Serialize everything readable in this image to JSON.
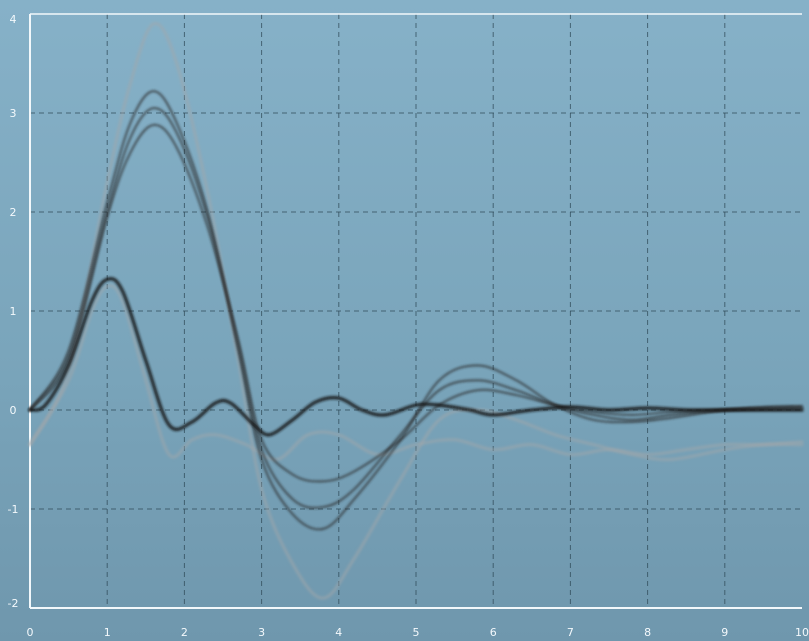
{
  "chart_data": {
    "type": "line",
    "title": "",
    "xlabel": "",
    "ylabel": "",
    "xlim": [
      0,
      10
    ],
    "ylim": [
      -2,
      4
    ],
    "grid": true,
    "x_ticks": [
      "0",
      "1",
      "2",
      "3",
      "4",
      "5",
      "6",
      "7",
      "8",
      "9",
      "10"
    ],
    "y_ticks": [
      "4",
      "3",
      "2",
      "1",
      "0",
      "-1",
      "-2"
    ],
    "series": [
      {
        "emphasis": "bold",
        "color": "#151515",
        "points": [
          [
            0,
            0
          ],
          [
            0.2,
            0.05
          ],
          [
            0.5,
            0.45
          ],
          [
            0.8,
            1.1
          ],
          [
            1.0,
            1.32
          ],
          [
            1.2,
            1.2
          ],
          [
            1.5,
            0.5
          ],
          [
            1.8,
            -0.15
          ],
          [
            2.1,
            -0.12
          ],
          [
            2.4,
            0.07
          ],
          [
            2.6,
            0.07
          ],
          [
            2.9,
            -0.15
          ],
          [
            3.1,
            -0.25
          ],
          [
            3.4,
            -0.1
          ],
          [
            3.7,
            0.08
          ],
          [
            4.0,
            0.12
          ],
          [
            4.3,
            0.0
          ],
          [
            4.6,
            -0.05
          ],
          [
            5.0,
            0.05
          ],
          [
            5.3,
            0.05
          ],
          [
            5.7,
            0.0
          ],
          [
            6.0,
            -0.05
          ],
          [
            6.5,
            0.0
          ],
          [
            7.0,
            0.03
          ],
          [
            7.5,
            0.0
          ],
          [
            8.0,
            0.02
          ],
          [
            8.5,
            0.0
          ],
          [
            9.0,
            0.0
          ],
          [
            9.5,
            0.0
          ],
          [
            10,
            0.0
          ]
        ]
      },
      {
        "emphasis": "thin",
        "color": "#2a2a2a",
        "points": [
          [
            0,
            0
          ],
          [
            0.5,
            0.6
          ],
          [
            1.0,
            2.1
          ],
          [
            1.3,
            2.9
          ],
          [
            1.6,
            3.22
          ],
          [
            1.9,
            2.9
          ],
          [
            2.3,
            2.0
          ],
          [
            2.7,
            0.6
          ],
          [
            3.0,
            -0.5
          ],
          [
            3.4,
            -1.05
          ],
          [
            3.8,
            -1.2
          ],
          [
            4.2,
            -0.9
          ],
          [
            4.8,
            -0.3
          ],
          [
            5.3,
            0.3
          ],
          [
            5.8,
            0.45
          ],
          [
            6.3,
            0.3
          ],
          [
            6.8,
            0.05
          ],
          [
            7.3,
            -0.1
          ],
          [
            7.8,
            -0.12
          ],
          [
            8.3,
            -0.08
          ],
          [
            9.0,
            0.0
          ],
          [
            9.5,
            0.03
          ],
          [
            10,
            0.04
          ]
        ]
      },
      {
        "emphasis": "thin",
        "color": "#2a2a2a",
        "points": [
          [
            0,
            0
          ],
          [
            0.5,
            0.55
          ],
          [
            1.0,
            2.0
          ],
          [
            1.3,
            2.75
          ],
          [
            1.6,
            3.05
          ],
          [
            1.9,
            2.8
          ],
          [
            2.3,
            1.95
          ],
          [
            2.7,
            0.65
          ],
          [
            3.0,
            -0.4
          ],
          [
            3.4,
            -0.9
          ],
          [
            3.8,
            -0.98
          ],
          [
            4.2,
            -0.8
          ],
          [
            4.8,
            -0.25
          ],
          [
            5.3,
            0.2
          ],
          [
            5.8,
            0.3
          ],
          [
            6.3,
            0.2
          ],
          [
            6.8,
            0.05
          ],
          [
            7.3,
            -0.05
          ],
          [
            7.8,
            -0.1
          ],
          [
            8.3,
            -0.05
          ],
          [
            9.0,
            0.0
          ],
          [
            9.5,
            0.02
          ],
          [
            10,
            0.03
          ]
        ]
      },
      {
        "emphasis": "thin",
        "color": "#2a2a2a",
        "points": [
          [
            0,
            0
          ],
          [
            0.5,
            0.5
          ],
          [
            1.0,
            1.95
          ],
          [
            1.3,
            2.6
          ],
          [
            1.6,
            2.88
          ],
          [
            1.9,
            2.65
          ],
          [
            2.3,
            1.85
          ],
          [
            2.7,
            0.7
          ],
          [
            3.0,
            -0.3
          ],
          [
            3.4,
            -0.65
          ],
          [
            3.8,
            -0.72
          ],
          [
            4.2,
            -0.62
          ],
          [
            4.8,
            -0.3
          ],
          [
            5.3,
            0.05
          ],
          [
            5.8,
            0.2
          ],
          [
            6.3,
            0.15
          ],
          [
            6.8,
            0.05
          ],
          [
            7.3,
            -0.02
          ],
          [
            7.8,
            -0.05
          ],
          [
            8.3,
            -0.02
          ],
          [
            9.0,
            0.0
          ],
          [
            10,
            0.02
          ]
        ]
      },
      {
        "emphasis": "faint",
        "color": "#a3a7aa",
        "points": [
          [
            0,
            -0.35
          ],
          [
            0.5,
            0.4
          ],
          [
            1.0,
            2.3
          ],
          [
            1.3,
            3.3
          ],
          [
            1.6,
            3.9
          ],
          [
            1.9,
            3.5
          ],
          [
            2.3,
            2.2
          ],
          [
            2.7,
            0.5
          ],
          [
            3.0,
            -0.8
          ],
          [
            3.4,
            -1.55
          ],
          [
            3.8,
            -1.9
          ],
          [
            4.2,
            -1.5
          ],
          [
            4.8,
            -0.7
          ],
          [
            5.3,
            -0.1
          ],
          [
            5.8,
            0.0
          ],
          [
            6.3,
            -0.1
          ],
          [
            6.8,
            -0.25
          ],
          [
            7.3,
            -0.35
          ],
          [
            7.8,
            -0.45
          ],
          [
            8.3,
            -0.5
          ],
          [
            9.0,
            -0.4
          ],
          [
            9.5,
            -0.35
          ],
          [
            10,
            -0.35
          ]
        ]
      },
      {
        "emphasis": "faint",
        "color": "#a3a7aa",
        "points": [
          [
            0,
            -0.35
          ],
          [
            0.5,
            0.3
          ],
          [
            0.8,
            1.0
          ],
          [
            1.0,
            1.25
          ],
          [
            1.2,
            1.1
          ],
          [
            1.5,
            0.3
          ],
          [
            1.8,
            -0.45
          ],
          [
            2.1,
            -0.3
          ],
          [
            2.4,
            -0.25
          ],
          [
            2.8,
            -0.35
          ],
          [
            3.2,
            -0.5
          ],
          [
            3.6,
            -0.25
          ],
          [
            4.0,
            -0.25
          ],
          [
            4.5,
            -0.45
          ],
          [
            5.0,
            -0.35
          ],
          [
            5.5,
            -0.3
          ],
          [
            6.0,
            -0.4
          ],
          [
            6.5,
            -0.35
          ],
          [
            7.0,
            -0.45
          ],
          [
            7.5,
            -0.4
          ],
          [
            8.0,
            -0.45
          ],
          [
            8.5,
            -0.4
          ],
          [
            9.0,
            -0.35
          ],
          [
            9.5,
            -0.35
          ],
          [
            10,
            -0.32
          ]
        ]
      }
    ]
  }
}
